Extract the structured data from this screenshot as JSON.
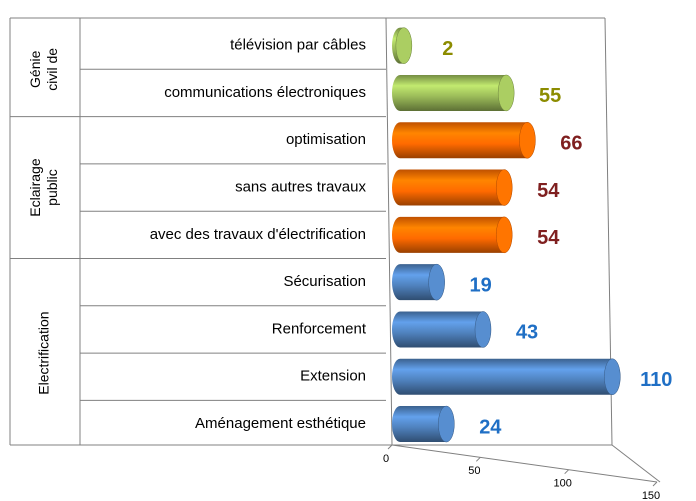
{
  "chart_data": {
    "type": "bar",
    "groups": [
      {
        "label": [
          "Génie",
          "civil de"
        ],
        "color": "#9bbb59",
        "label_color": "#8c8c00",
        "categories": [
          "télévision par câbles",
          "communications électroniques"
        ],
        "values": [
          2,
          55
        ]
      },
      {
        "label": [
          "Eclairage",
          "public"
        ],
        "color": "#ff6a00",
        "label_color": "#7f1f1f",
        "categories": [
          "optimisation",
          "sans autres travaux",
          "avec des travaux d'électrification"
        ],
        "values": [
          66,
          54,
          54
        ]
      },
      {
        "label": [
          "Electrification"
        ],
        "color": "#4f81bd",
        "label_color": "#1f6fc5",
        "categories": [
          "Sécurisation",
          "Renforcement",
          "Extension",
          "Aménagement esthétique"
        ],
        "values": [
          19,
          43,
          110,
          24
        ]
      }
    ],
    "xlim": [
      0,
      150
    ],
    "xticks": [
      0,
      50,
      100,
      150
    ]
  }
}
